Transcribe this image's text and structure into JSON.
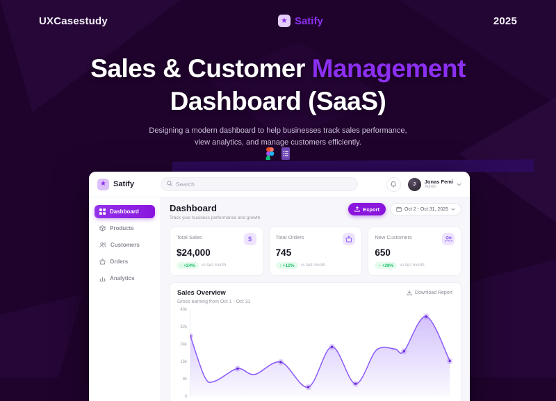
{
  "colors": {
    "bg": "#20032d",
    "accent": "#8b2ff0",
    "accent2": "#8a15dd",
    "chart-line": "#8b5cf6",
    "positive": "#1fc16b"
  },
  "hero": {
    "brand": "UXCasestudy",
    "logo_label": "Satify",
    "year": "2025",
    "title_white_1": "Sales & Customer ",
    "title_accent": "Management",
    "title_line2": "Dashboard (SaaS)",
    "subtitle_line1": "Designing a modern dashboard to help businesses track sales performance,",
    "subtitle_line2": "view analytics, and manage customers efficiently.",
    "tool_icons": [
      "figma-icon",
      "google-forms-icon"
    ]
  },
  "dashboard": {
    "topbar": {
      "logo_label": "Satify",
      "search_placeholder": "Search",
      "user_name": "Jonas Femi",
      "user_role": "Admin",
      "avatar_initial": "J"
    },
    "sidebar": {
      "items": [
        {
          "label": "Dashboard",
          "icon": "grid-icon",
          "active": true
        },
        {
          "label": "Products",
          "icon": "cube-icon",
          "active": false
        },
        {
          "label": "Customers",
          "icon": "users-icon",
          "active": false
        },
        {
          "label": "Orders",
          "icon": "basket-icon",
          "active": false
        },
        {
          "label": "Analytics",
          "icon": "bar-chart-icon",
          "active": false
        }
      ]
    },
    "header": {
      "title": "Dashboard",
      "subtitle": "Track your business performance and growth",
      "export_label": "Export",
      "date_range": "Oct 2 - Oct 31, 2025"
    },
    "stats": [
      {
        "label": "Total Sales",
        "value": "$24,000",
        "change": "+24%",
        "change_note": "vs last month",
        "icon": "dollar-icon"
      },
      {
        "label": "Total Orders",
        "value": "745",
        "change": "+12%",
        "change_note": "vs last month",
        "icon": "basket-icon"
      },
      {
        "label": "New Customers",
        "value": "650",
        "change": "+28%",
        "change_note": "vs last month",
        "icon": "users-icon"
      }
    ],
    "chart_card": {
      "title": "Sales Overview",
      "subtitle": "Gross earning from Oct 1 - Oct 31",
      "download_label": "Download Report"
    }
  },
  "chart_data": {
    "type": "area",
    "title": "Sales Overview",
    "xlabel": "Oct 1 - Oct 31",
    "ylabel": "earnings",
    "ylim": [
      0,
      40000
    ],
    "yticks": [
      "40k",
      "32k",
      "24k",
      "16k",
      "8k",
      "0"
    ],
    "grid": false,
    "legend": "none",
    "unit_thousands": true,
    "points": [
      {
        "x": 0,
        "y": 28,
        "marker": true
      },
      {
        "x": 5.5,
        "y": 9,
        "marker": false
      },
      {
        "x": 9.5,
        "y": 7.3,
        "marker": false
      },
      {
        "x": 18,
        "y": 13,
        "marker": true
      },
      {
        "x": 24.5,
        "y": 10.3,
        "marker": false
      },
      {
        "x": 34.5,
        "y": 16,
        "marker": true
      },
      {
        "x": 45,
        "y": 4.5,
        "marker": true
      },
      {
        "x": 54,
        "y": 23,
        "marker": true
      },
      {
        "x": 63,
        "y": 6,
        "marker": true
      },
      {
        "x": 71,
        "y": 21.5,
        "marker": false
      },
      {
        "x": 78,
        "y": 22,
        "marker": false
      },
      {
        "x": 81.5,
        "y": 21,
        "marker": true
      },
      {
        "x": 90,
        "y": 37,
        "marker": true
      },
      {
        "x": 99,
        "y": 16.5,
        "marker": true
      }
    ]
  }
}
